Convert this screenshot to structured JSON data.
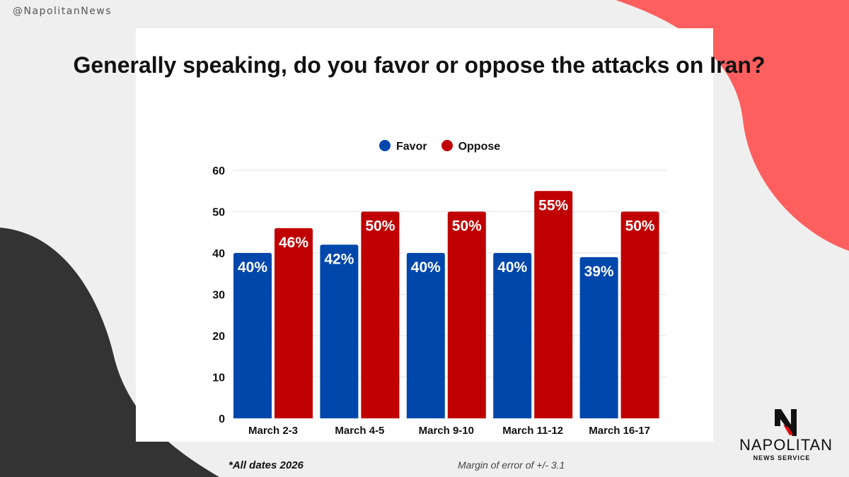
{
  "handle": "@NapolitanNews",
  "footer": {
    "note": "*All dates 2026",
    "margin": "Margin of error of +/- 3.1"
  },
  "logo": {
    "name": "NAPOLITAN",
    "sub": "NEWS SERVICE"
  },
  "colors": {
    "favor": "#0047ab",
    "oppose": "#c00000",
    "accent": "#fd5f5f",
    "dark": "#333333"
  },
  "chart_data": {
    "type": "bar",
    "title": "Generally speaking, do you favor or oppose the attacks on Iran?",
    "categories": [
      "March 2-3",
      "March 4-5",
      "March 9-10",
      "March 11-12",
      "March 16-17"
    ],
    "series": [
      {
        "name": "Favor",
        "values": [
          40,
          42,
          40,
          40,
          39
        ]
      },
      {
        "name": "Oppose",
        "values": [
          46,
          50,
          50,
          55,
          50
        ]
      }
    ],
    "ylim": [
      0,
      60
    ],
    "yticks": [
      0,
      10,
      20,
      30,
      40,
      50,
      60
    ],
    "legend": "top-center",
    "grid": true,
    "xlabel": "",
    "ylabel": ""
  }
}
